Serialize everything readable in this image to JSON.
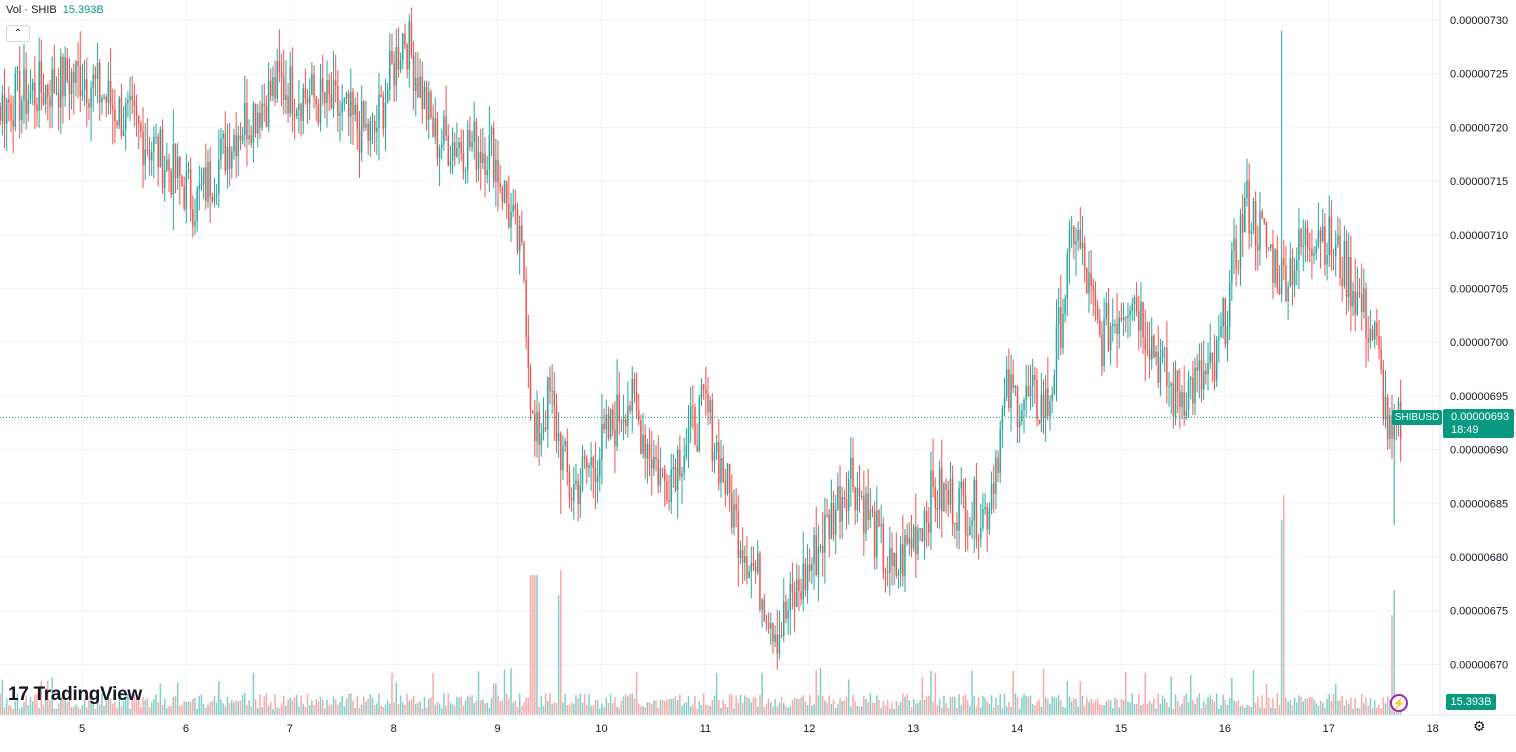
{
  "legend": {
    "label": "Vol · SHIB",
    "value": "15.393B"
  },
  "logo": {
    "text": "TradingView",
    "mark": "17"
  },
  "price_tag": {
    "symbol": "SHIBUSD",
    "price": "0.00000693",
    "countdown": "18:49"
  },
  "volume_tag": "15.393B",
  "icons": {
    "collapse": "chevron-up-icon",
    "settings": "gear-icon",
    "bolt": "lightning-icon"
  },
  "colors": {
    "up": "#26a69a",
    "down": "#ef5350",
    "volume_up": "#7fcfc6",
    "volume_down": "#f7a9a7",
    "last_price": "#089981"
  },
  "chart_data": {
    "type": "candlestick",
    "x_ticks": [
      "5",
      "6",
      "7",
      "8",
      "9",
      "10",
      "11",
      "12",
      "13",
      "14",
      "15",
      "16",
      "17",
      "18"
    ],
    "y_ticks": [
      "0.00000730",
      "0.00000725",
      "0.00000720",
      "0.00000715",
      "0.00000710",
      "0.00000705",
      "0.00000700",
      "0.00000695",
      "0.00000690",
      "0.00000685",
      "0.00000680",
      "0.00000675",
      "0.00000670"
    ],
    "ylim": [
      6.66e-06,
      7.31e-06
    ],
    "last_price": 6.93e-06,
    "key_closes": [
      {
        "day": 4.2,
        "close": 7.22e-06
      },
      {
        "day": 5.0,
        "close": 7.25e-06
      },
      {
        "day": 5.7,
        "close": 7.18e-06
      },
      {
        "day": 6.1,
        "close": 7.13e-06
      },
      {
        "day": 6.5,
        "close": 7.2e-06
      },
      {
        "day": 6.9,
        "close": 7.24e-06
      },
      {
        "day": 7.4,
        "close": 7.22e-06
      },
      {
        "day": 7.8,
        "close": 7.19e-06
      },
      {
        "day": 8.1,
        "close": 7.29e-06
      },
      {
        "day": 8.4,
        "close": 7.19e-06
      },
      {
        "day": 8.95,
        "close": 7.18e-06
      },
      {
        "day": 9.25,
        "close": 7.07e-06
      },
      {
        "day": 9.35,
        "close": 6.9e-06
      },
      {
        "day": 9.5,
        "close": 6.95e-06
      },
      {
        "day": 9.7,
        "close": 6.86e-06
      },
      {
        "day": 10.0,
        "close": 6.9e-06
      },
      {
        "day": 10.25,
        "close": 6.95e-06
      },
      {
        "day": 10.6,
        "close": 6.87e-06
      },
      {
        "day": 11.0,
        "close": 6.94e-06
      },
      {
        "day": 11.3,
        "close": 6.83e-06
      },
      {
        "day": 11.7,
        "close": 6.73e-06
      },
      {
        "day": 12.0,
        "close": 6.79e-06
      },
      {
        "day": 12.4,
        "close": 6.88e-06
      },
      {
        "day": 12.8,
        "close": 6.78e-06
      },
      {
        "day": 13.2,
        "close": 6.86e-06
      },
      {
        "day": 13.7,
        "close": 6.84e-06
      },
      {
        "day": 13.9,
        "close": 6.95e-06
      },
      {
        "day": 14.3,
        "close": 6.94e-06
      },
      {
        "day": 14.55,
        "close": 7.11e-06
      },
      {
        "day": 14.8,
        "close": 7e-06
      },
      {
        "day": 15.1,
        "close": 7.05e-06
      },
      {
        "day": 15.5,
        "close": 6.95e-06
      },
      {
        "day": 15.9,
        "close": 6.97e-06
      },
      {
        "day": 16.2,
        "close": 7.13e-06
      },
      {
        "day": 16.55,
        "close": 7.06e-06
      },
      {
        "day": 16.9,
        "close": 7.11e-06
      },
      {
        "day": 17.2,
        "close": 7.06e-06
      },
      {
        "day": 17.45,
        "close": 7e-06
      },
      {
        "day": 17.6,
        "close": 6.9e-06
      },
      {
        "day": 17.7,
        "close": 6.93e-06
      }
    ]
  }
}
